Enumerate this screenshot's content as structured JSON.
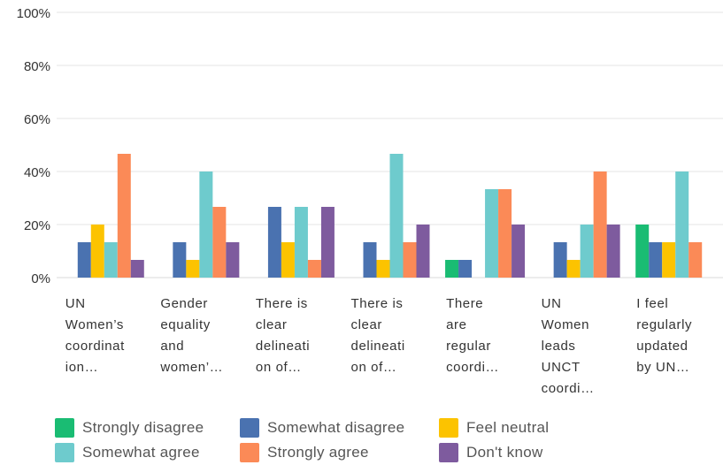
{
  "chart_data": {
    "type": "bar",
    "title": "",
    "xlabel": "",
    "ylabel": "",
    "ylim": [
      0,
      100
    ],
    "yticks": [
      "0%",
      "20%",
      "40%",
      "60%",
      "80%",
      "100%"
    ],
    "grid": true,
    "legend_position": "bottom",
    "categories": [
      [
        "UN",
        "Women’s",
        "coordinat",
        "ion…"
      ],
      [
        "Gender",
        "equality",
        "and",
        "women’…"
      ],
      [
        "There is",
        "clear",
        "delineati",
        "on of…"
      ],
      [
        "There is",
        "clear",
        "delineati",
        "on of…"
      ],
      [
        "There",
        "are",
        "regular",
        "coordi…"
      ],
      [
        "UN",
        "Women",
        "leads",
        "UNCT",
        "coordi…"
      ],
      [
        "I feel",
        "regularly",
        "updated",
        "by UN…"
      ]
    ],
    "series": [
      {
        "name": "Strongly disagree",
        "color": "#1abc73",
        "values": [
          0,
          0,
          0,
          0,
          6.67,
          0,
          20
        ]
      },
      {
        "name": "Somewhat disagree",
        "color": "#4a72b0",
        "values": [
          13.33,
          13.33,
          26.67,
          13.33,
          6.67,
          13.33,
          13.33
        ]
      },
      {
        "name": "Feel neutral",
        "color": "#fcc300",
        "values": [
          20,
          6.67,
          13.33,
          6.67,
          0,
          6.67,
          13.33
        ]
      },
      {
        "name": "Somewhat agree",
        "color": "#6ecbcd",
        "values": [
          13.33,
          40,
          26.67,
          46.67,
          33.33,
          20,
          40
        ]
      },
      {
        "name": "Strongly agree",
        "color": "#fb8a57",
        "values": [
          46.67,
          26.67,
          6.67,
          13.33,
          33.33,
          40,
          13.33
        ]
      },
      {
        "name": "Don't know",
        "color": "#7e5b9e",
        "values": [
          6.67,
          13.33,
          26.67,
          20,
          20,
          20,
          0
        ]
      }
    ]
  }
}
